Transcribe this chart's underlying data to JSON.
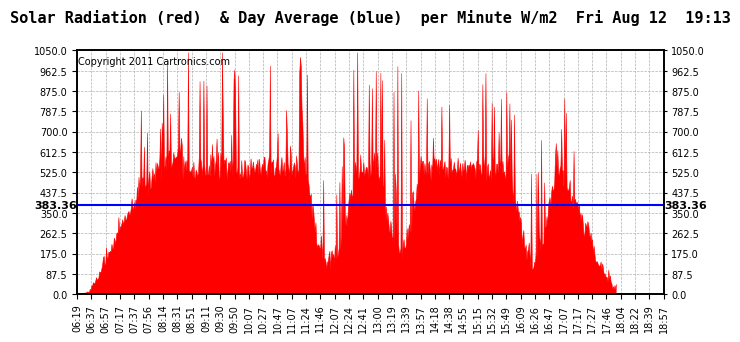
{
  "title": "Solar Radiation (red)  & Day Average (blue)  per Minute W/m2  Fri Aug 12  19:13",
  "copyright": "Copyright 2011 Cartronics.com",
  "avg_value": 383.36,
  "y_max": 1050.0,
  "y_min": 0.0,
  "y_ticks": [
    0.0,
    87.5,
    175.0,
    262.5,
    350.0,
    437.5,
    525.0,
    612.5,
    700.0,
    787.5,
    875.0,
    962.5,
    1050.0
  ],
  "y_tick_labels": [
    "0.0",
    "87.5",
    "175.0",
    "262.5",
    "350.0",
    "437.5",
    "525.0",
    "612.5",
    "700.0",
    "787.5",
    "875.0",
    "962.5",
    "1050.0"
  ],
  "bar_color": "#FF0000",
  "avg_line_color": "#0000FF",
  "grid_color": "#AAAAAA",
  "background_color": "#FFFFFF",
  "border_color": "#000000",
  "title_fontsize": 11,
  "copyright_fontsize": 7,
  "tick_label_fontsize": 7,
  "avg_label_fontsize": 8,
  "x_tick_labels": [
    "06:19",
    "06:37",
    "06:57",
    "07:17",
    "07:37",
    "07:56",
    "08:14",
    "08:31",
    "08:51",
    "09:11",
    "09:30",
    "09:50",
    "10:07",
    "10:27",
    "10:47",
    "11:07",
    "11:24",
    "11:46",
    "12:07",
    "12:24",
    "12:41",
    "13:00",
    "13:19",
    "13:39",
    "13:57",
    "14:18",
    "14:38",
    "14:55",
    "15:15",
    "15:32",
    "15:49",
    "16:09",
    "16:26",
    "16:47",
    "17:07",
    "17:17",
    "17:27",
    "17:46",
    "18:04",
    "18:22",
    "18:39",
    "18:57"
  ]
}
